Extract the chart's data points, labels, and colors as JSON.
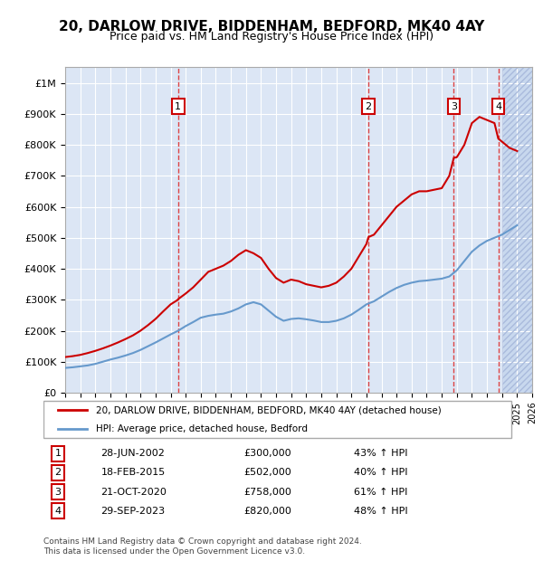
{
  "title": "20, DARLOW DRIVE, BIDDENHAM, BEDFORD, MK40 4AY",
  "subtitle": "Price paid vs. HM Land Registry's House Price Index (HPI)",
  "legend_property": "20, DARLOW DRIVE, BIDDENHAM, BEDFORD, MK40 4AY (detached house)",
  "legend_hpi": "HPI: Average price, detached house, Bedford",
  "footer": "Contains HM Land Registry data © Crown copyright and database right 2024.\nThis data is licensed under the Open Government Licence v3.0.",
  "sales": [
    {
      "num": 1,
      "date": "28-JUN-2002",
      "price": 300000,
      "pct": "43% ↑ HPI",
      "x": 2002.49
    },
    {
      "num": 2,
      "date": "18-FEB-2015",
      "price": 502000,
      "pct": "40% ↑ HPI",
      "x": 2015.13
    },
    {
      "num": 3,
      "date": "21-OCT-2020",
      "price": 758000,
      "pct": "61% ↑ HPI",
      "x": 2020.8
    },
    {
      "num": 4,
      "date": "29-SEP-2023",
      "price": 820000,
      "pct": "48% ↑ HPI",
      "x": 2023.75
    }
  ],
  "property_line": {
    "x": [
      1995.0,
      1995.5,
      1996.0,
      1996.5,
      1997.0,
      1997.5,
      1998.0,
      1998.5,
      1999.0,
      1999.5,
      2000.0,
      2000.5,
      2001.0,
      2001.5,
      2002.0,
      2002.49,
      2002.5,
      2003.0,
      2003.5,
      2004.0,
      2004.5,
      2005.0,
      2005.5,
      2006.0,
      2006.5,
      2007.0,
      2007.5,
      2008.0,
      2008.5,
      2009.0,
      2009.5,
      2010.0,
      2010.5,
      2011.0,
      2011.5,
      2012.0,
      2012.5,
      2013.0,
      2013.5,
      2014.0,
      2014.5,
      2015.0,
      2015.13,
      2015.5,
      2016.0,
      2016.5,
      2017.0,
      2017.5,
      2018.0,
      2018.5,
      2019.0,
      2019.5,
      2020.0,
      2020.5,
      2020.8,
      2021.0,
      2021.5,
      2022.0,
      2022.5,
      2023.0,
      2023.5,
      2023.75,
      2024.0,
      2024.5,
      2025.0
    ],
    "y": [
      115000,
      118000,
      122000,
      128000,
      135000,
      143000,
      152000,
      162000,
      173000,
      185000,
      200000,
      218000,
      238000,
      262000,
      285000,
      300000,
      302000,
      320000,
      340000,
      365000,
      390000,
      400000,
      410000,
      425000,
      445000,
      460000,
      450000,
      435000,
      400000,
      370000,
      355000,
      365000,
      360000,
      350000,
      345000,
      340000,
      345000,
      355000,
      375000,
      400000,
      440000,
      480000,
      502000,
      510000,
      540000,
      570000,
      600000,
      620000,
      640000,
      650000,
      650000,
      655000,
      660000,
      700000,
      758000,
      760000,
      800000,
      870000,
      890000,
      880000,
      870000,
      820000,
      810000,
      790000,
      780000
    ]
  },
  "hpi_line": {
    "x": [
      1995.0,
      1995.5,
      1996.0,
      1996.5,
      1997.0,
      1997.5,
      1998.0,
      1998.5,
      1999.0,
      1999.5,
      2000.0,
      2000.5,
      2001.0,
      2001.5,
      2002.0,
      2002.5,
      2003.0,
      2003.5,
      2004.0,
      2004.5,
      2005.0,
      2005.5,
      2006.0,
      2006.5,
      2007.0,
      2007.5,
      2008.0,
      2008.5,
      2009.0,
      2009.5,
      2010.0,
      2010.5,
      2011.0,
      2011.5,
      2012.0,
      2012.5,
      2013.0,
      2013.5,
      2014.0,
      2014.5,
      2015.0,
      2015.5,
      2016.0,
      2016.5,
      2017.0,
      2017.5,
      2018.0,
      2018.5,
      2019.0,
      2019.5,
      2020.0,
      2020.5,
      2021.0,
      2021.5,
      2022.0,
      2022.5,
      2023.0,
      2023.5,
      2024.0,
      2024.5,
      2025.0
    ],
    "y": [
      80000,
      82000,
      85000,
      88000,
      93000,
      100000,
      107000,
      113000,
      120000,
      128000,
      138000,
      150000,
      162000,
      175000,
      188000,
      200000,
      215000,
      228000,
      242000,
      248000,
      252000,
      255000,
      262000,
      272000,
      285000,
      292000,
      285000,
      265000,
      245000,
      232000,
      238000,
      240000,
      237000,
      233000,
      228000,
      228000,
      232000,
      240000,
      252000,
      268000,
      285000,
      295000,
      310000,
      325000,
      338000,
      348000,
      355000,
      360000,
      362000,
      365000,
      368000,
      375000,
      395000,
      425000,
      455000,
      475000,
      490000,
      500000,
      510000,
      525000,
      540000
    ]
  },
  "future_shade_start": 2024.0,
  "xlim": [
    1995.0,
    2026.0
  ],
  "ylim": [
    0,
    1050000
  ],
  "yticks": [
    0,
    100000,
    200000,
    300000,
    400000,
    500000,
    600000,
    700000,
    800000,
    900000,
    1000000
  ],
  "ytick_labels": [
    "£0",
    "£100K",
    "£200K",
    "£300K",
    "£400K",
    "£500K",
    "£600K",
    "£700K",
    "£800K",
    "£900K",
    "£1M"
  ],
  "xticks": [
    1995,
    1996,
    1997,
    1998,
    1999,
    2000,
    2001,
    2002,
    2003,
    2004,
    2005,
    2006,
    2007,
    2008,
    2009,
    2010,
    2011,
    2012,
    2013,
    2014,
    2015,
    2016,
    2017,
    2018,
    2019,
    2020,
    2021,
    2022,
    2023,
    2024,
    2025,
    2026
  ],
  "bg_color": "#dce6f5",
  "hatch_color": "#c8d8ee",
  "property_color": "#cc0000",
  "hpi_color": "#6699cc",
  "marker_box_color": "#cc0000",
  "vline_color": "#dd4444"
}
